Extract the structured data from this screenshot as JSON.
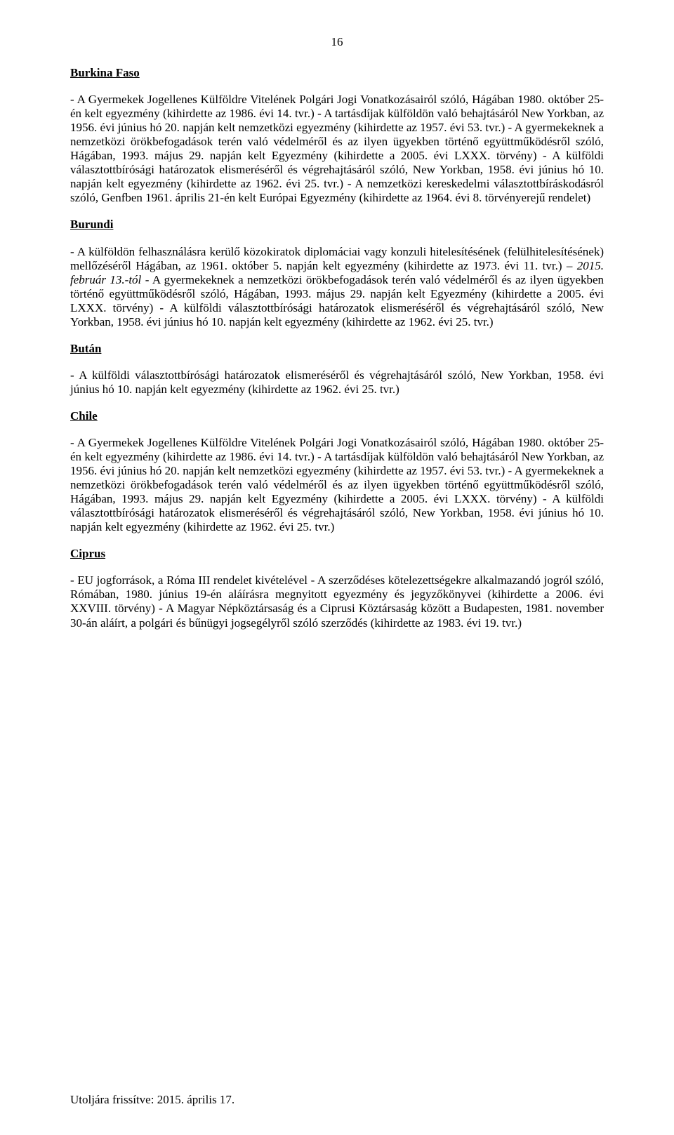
{
  "page_number": "16",
  "sections": {
    "burkina_faso": {
      "heading": "Burkina Faso",
      "body": "- A Gyermekek Jogellenes Külföldre Vitelének Polgári Jogi Vonatkozásairól szóló, Hágában 1980. október 25-én kelt egyezmény (kihirdette az 1986. évi 14. tvr.)\n- A tartásdíjak külföldön való behajtásáról New Yorkban, az 1956. évi június hó 20. napján kelt nemzetközi egyezmény (kihirdette az 1957. évi 53. tvr.)\n- A gyermekeknek a nemzetközi örökbefogadások terén való védelméről és az ilyen ügyekben történő együttműködésről szóló, Hágában, 1993. május 29. napján kelt Egyezmény (kihirdette a 2005. évi LXXX. törvény)\n- A külföldi választottbírósági határozatok elismeréséről és végrehajtásáról szóló, New Yorkban, 1958. évi június hó 10. napján kelt egyezmény (kihirdette az 1962. évi 25. tvr.)\n- A nemzetközi kereskedelmi választottbíráskodásról szóló, Genfben 1961. április 21-én kelt Európai Egyezmény (kihirdette az 1964. évi 8. törvényerejű rendelet)"
    },
    "burundi": {
      "heading": "Burundi",
      "body_pre": "- A külföldön felhasználásra kerülő közokiratok diplomáciai vagy konzuli hitelesítésének (felülhitelesítésének) mellőzéséről Hágában, az 1961. október 5. napján kelt egyezmény (kihirdette az 1973. évi 11. tvr.) ",
      "body_italic": "– 2015. február 13.-tól",
      "body_post": "\n- A gyermekeknek a nemzetközi örökbefogadások terén való védelméről és az ilyen ügyekben történő együttműködésről szóló, Hágában, 1993. május 29. napján kelt Egyezmény (kihirdette a 2005. évi LXXX. törvény)\n- A külföldi választottbírósági határozatok elismeréséről és végrehajtásáról szóló, New Yorkban, 1958. évi június hó 10. napján kelt egyezmény (kihirdette az 1962. évi 25. tvr.)"
    },
    "butan": {
      "heading": "Bután",
      "body": "- A külföldi választottbírósági határozatok elismeréséről és végrehajtásáról szóló, New Yorkban, 1958. évi június hó 10. napján kelt egyezmény (kihirdette az 1962. évi 25. tvr.)"
    },
    "chile": {
      "heading": "Chile",
      "body": "- A Gyermekek Jogellenes Külföldre Vitelének Polgári Jogi Vonatkozásairól szóló, Hágában 1980. október 25-én kelt egyezmény (kihirdette az 1986. évi 14. tvr.)\n- A tartásdíjak külföldön való behajtásáról New Yorkban, az 1956. évi június hó 20. napján kelt nemzetközi egyezmény (kihirdette az 1957. évi 53. tvr.)\n- A gyermekeknek a nemzetközi örökbefogadások terén való védelméről és az ilyen ügyekben történő együttműködésről szóló, Hágában, 1993. május 29. napján kelt Egyezmény (kihirdette a 2005. évi LXXX. törvény)\n- A külföldi választottbírósági határozatok elismeréséről és végrehajtásáról szóló, New Yorkban, 1958. évi június hó 10. napján kelt egyezmény (kihirdette az 1962. évi 25. tvr.)"
    },
    "ciprus": {
      "heading": "Ciprus",
      "body": "- EU jogforrások, a Róma III rendelet kivételével\n- A szerződéses kötelezettségekre alkalmazandó jogról szóló, Rómában, 1980. június 19-én aláírásra megnyitott egyezmény és jegyzőkönyvei (kihirdette a 2006. évi XXVIII. törvény)\n- A Magyar Népköztársaság és a Ciprusi Köztársaság között a Budapesten, 1981. november 30-án aláírt, a polgári és bűnügyi jogsegélyről szóló szerződés (kihirdette az 1983. évi 19. tvr.)"
    }
  },
  "footer": "Utoljára frissítve: 2015. április 17."
}
